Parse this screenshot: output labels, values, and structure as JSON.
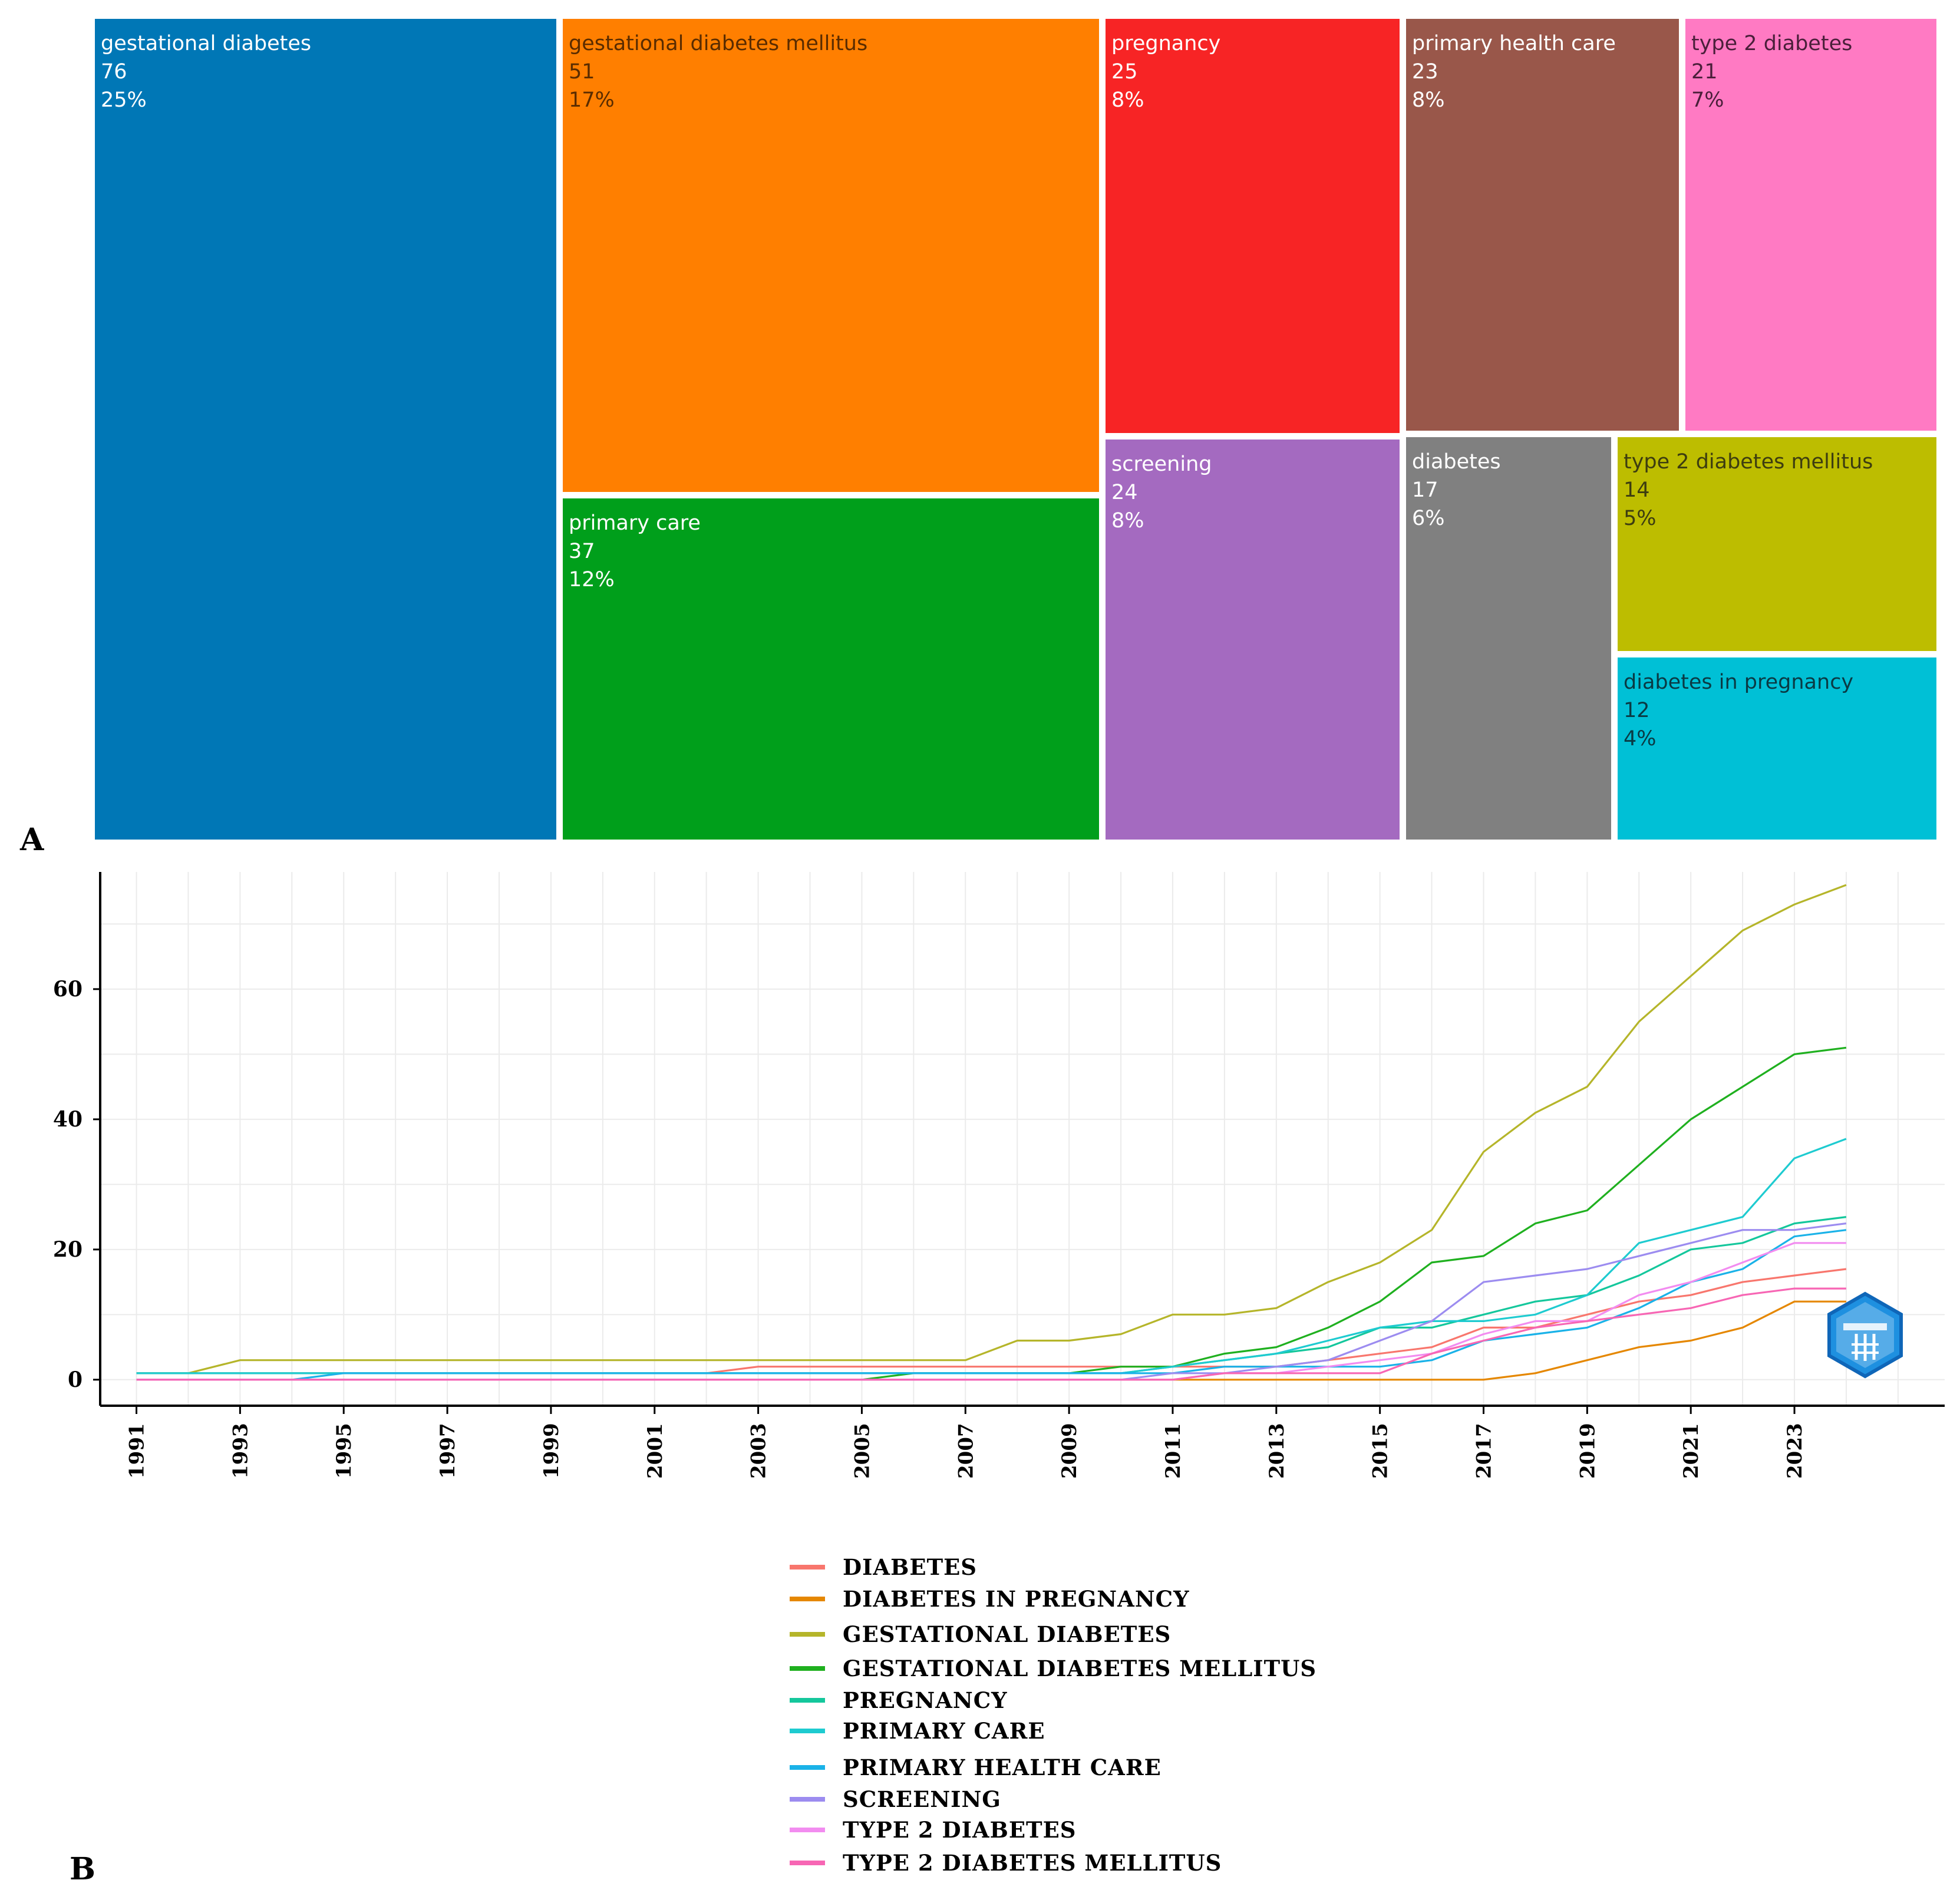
{
  "panel_labels": {
    "a": "A",
    "b": "B"
  },
  "chart_data": [
    {
      "type": "treemap",
      "title": "",
      "items": [
        {
          "label": "gestational diabetes",
          "value": 76,
          "percent": "25%",
          "color": "#0077B6",
          "text_color": "#ffffff"
        },
        {
          "label": "gestational diabetes mellitus",
          "value": 51,
          "percent": "17%",
          "color": "#FF7F00",
          "text_color": "#5a2c00"
        },
        {
          "label": "primary care",
          "value": 37,
          "percent": "12%",
          "color": "#009F1B",
          "text_color": "#ffffff"
        },
        {
          "label": "pregnancy",
          "value": 25,
          "percent": "8%",
          "color": "#F72425",
          "text_color": "#ffffff"
        },
        {
          "label": "screening",
          "value": 24,
          "percent": "8%",
          "color": "#A46AC0",
          "text_color": "#ffffff"
        },
        {
          "label": "primary health care",
          "value": 23,
          "percent": "8%",
          "color": "#99574A",
          "text_color": "#ffffff"
        },
        {
          "label": "type 2 diabetes",
          "value": 21,
          "percent": "7%",
          "color": "#FF7AC3",
          "text_color": "#4a1f3a"
        },
        {
          "label": "diabetes",
          "value": 17,
          "percent": "6%",
          "color": "#808080",
          "text_color": "#ffffff"
        },
        {
          "label": "type 2 diabetes mellitus",
          "value": 14,
          "percent": "5%",
          "color": "#BDBD00",
          "text_color": "#3d3d10"
        },
        {
          "label": "diabetes in pregnancy",
          "value": 12,
          "percent": "4%",
          "color": "#00C0D6",
          "text_color": "#0a3a44"
        }
      ]
    },
    {
      "type": "line",
      "title": "",
      "xlabel": "",
      "ylabel": "",
      "xlim": [
        1990.3,
        2025.9
      ],
      "ylim": [
        -4,
        78
      ],
      "x_ticks": [
        "1991",
        "1993",
        "1995",
        "1997",
        "1999",
        "2001",
        "2003",
        "2005",
        "2007",
        "2009",
        "2011",
        "2013",
        "2015",
        "2017",
        "2019",
        "2021",
        "2023"
      ],
      "y_ticks": [
        "0",
        "20",
        "40",
        "60"
      ],
      "x": [
        1991,
        1992,
        1993,
        1994,
        1995,
        1996,
        1997,
        1998,
        1999,
        2000,
        2001,
        2002,
        2003,
        2004,
        2005,
        2006,
        2007,
        2008,
        2009,
        2010,
        2011,
        2012,
        2013,
        2014,
        2015,
        2016,
        2017,
        2018,
        2019,
        2020,
        2021,
        2022,
        2023,
        2024
      ],
      "series": [
        {
          "name": "DIABETES",
          "color": "#F8766D",
          "values": [
            1,
            1,
            1,
            1,
            1,
            1,
            1,
            1,
            1,
            1,
            1,
            1,
            2,
            2,
            2,
            2,
            2,
            2,
            2,
            2,
            2,
            2,
            2,
            3,
            4,
            5,
            8,
            8,
            10,
            12,
            13,
            15,
            16,
            17
          ]
        },
        {
          "name": "DIABETES IN PREGNANCY",
          "color": "#E58700",
          "values": [
            0,
            0,
            0,
            0,
            0,
            0,
            0,
            0,
            0,
            0,
            0,
            0,
            0,
            0,
            0,
            0,
            0,
            0,
            0,
            0,
            0,
            0,
            0,
            0,
            0,
            0,
            0,
            1,
            3,
            5,
            6,
            8,
            12,
            12
          ]
        },
        {
          "name": "GESTATIONAL DIABETES",
          "color": "#B5B52A",
          "values": [
            1,
            1,
            3,
            3,
            3,
            3,
            3,
            3,
            3,
            3,
            3,
            3,
            3,
            3,
            3,
            3,
            3,
            6,
            6,
            7,
            10,
            10,
            11,
            15,
            18,
            23,
            35,
            41,
            45,
            55,
            62,
            69,
            73,
            76
          ]
        },
        {
          "name": "GESTATIONAL DIABETES MELLITUS",
          "color": "#1FB01F",
          "values": [
            0,
            0,
            0,
            0,
            0,
            0,
            0,
            0,
            0,
            0,
            0,
            0,
            0,
            0,
            0,
            1,
            1,
            1,
            1,
            2,
            2,
            4,
            5,
            8,
            12,
            18,
            19,
            24,
            26,
            33,
            40,
            45,
            50,
            51
          ]
        },
        {
          "name": "PREGNANCY",
          "color": "#14C79C",
          "values": [
            1,
            1,
            1,
            1,
            1,
            1,
            1,
            1,
            1,
            1,
            1,
            1,
            1,
            1,
            1,
            1,
            1,
            1,
            1,
            1,
            2,
            3,
            4,
            5,
            8,
            8,
            10,
            12,
            13,
            16,
            20,
            21,
            24,
            25
          ]
        },
        {
          "name": "PRIMARY CARE",
          "color": "#1ECBD0",
          "values": [
            1,
            1,
            1,
            1,
            1,
            1,
            1,
            1,
            1,
            1,
            1,
            1,
            1,
            1,
            1,
            1,
            1,
            1,
            1,
            1,
            2,
            3,
            4,
            6,
            8,
            9,
            9,
            10,
            13,
            21,
            23,
            25,
            34,
            37
          ]
        },
        {
          "name": "PRIMARY HEALTH CARE",
          "color": "#1AB2E8",
          "values": [
            0,
            0,
            0,
            0,
            1,
            1,
            1,
            1,
            1,
            1,
            1,
            1,
            1,
            1,
            1,
            1,
            1,
            1,
            1,
            1,
            1,
            2,
            2,
            2,
            2,
            3,
            6,
            7,
            8,
            11,
            15,
            17,
            22,
            23
          ]
        },
        {
          "name": "SCREENING",
          "color": "#9C8CF0",
          "values": [
            0,
            0,
            0,
            0,
            0,
            0,
            0,
            0,
            0,
            0,
            0,
            0,
            0,
            0,
            0,
            0,
            0,
            0,
            0,
            0,
            1,
            1,
            2,
            3,
            6,
            9,
            15,
            16,
            17,
            19,
            21,
            23,
            23,
            24
          ]
        },
        {
          "name": "TYPE 2 DIABETES",
          "color": "#F28CF0",
          "values": [
            0,
            0,
            0,
            0,
            0,
            0,
            0,
            0,
            0,
            0,
            0,
            0,
            0,
            0,
            0,
            0,
            0,
            0,
            0,
            0,
            0,
            1,
            1,
            2,
            3,
            4,
            7,
            9,
            9,
            13,
            15,
            18,
            21,
            21
          ]
        },
        {
          "name": "TYPE 2 DIABETES MELLITUS",
          "color": "#F766B4",
          "values": [
            0,
            0,
            0,
            0,
            0,
            0,
            0,
            0,
            0,
            0,
            0,
            0,
            0,
            0,
            0,
            0,
            0,
            0,
            0,
            0,
            0,
            1,
            1,
            1,
            1,
            4,
            6,
            8,
            9,
            10,
            11,
            13,
            14,
            14
          ]
        }
      ]
    }
  ]
}
